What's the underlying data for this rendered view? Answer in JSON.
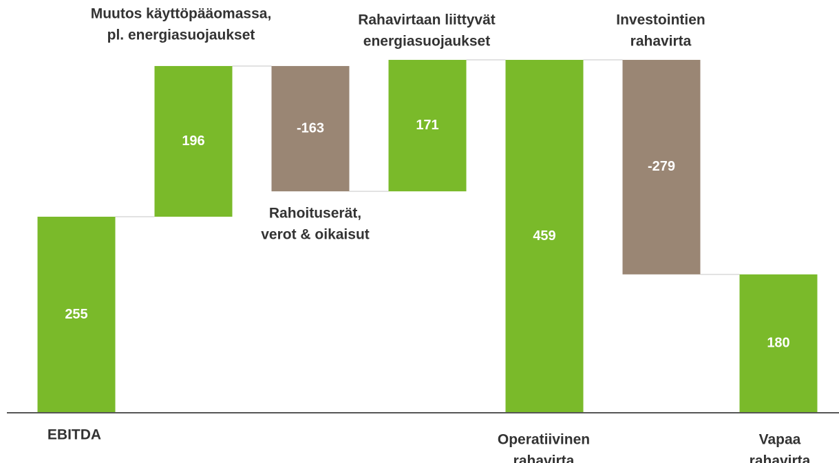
{
  "chart_data": {
    "type": "waterfall",
    "categories": [
      [
        "EBITDA"
      ],
      [
        "Muutos käyttöpääomassa,",
        "pl. energiasuojaukset"
      ],
      [
        "Rahoituserät,",
        "verot & oikaisut"
      ],
      [
        "Rahavirtaan liittyvät",
        "energiasuojaukset"
      ],
      [
        "Operatiivinen",
        "rahavirta"
      ],
      [
        "Investointien",
        "rahavirta"
      ],
      [
        "Vapaa",
        "rahavirta"
      ]
    ],
    "values": [
      255,
      196,
      -163,
      171,
      459,
      -279,
      180
    ],
    "measure": [
      "absolute",
      "relative",
      "relative",
      "relative",
      "total",
      "relative",
      "total"
    ],
    "increase_color": "#7aba2a",
    "decrease_color": "#9a8674",
    "total_color": "#7aba2a"
  }
}
